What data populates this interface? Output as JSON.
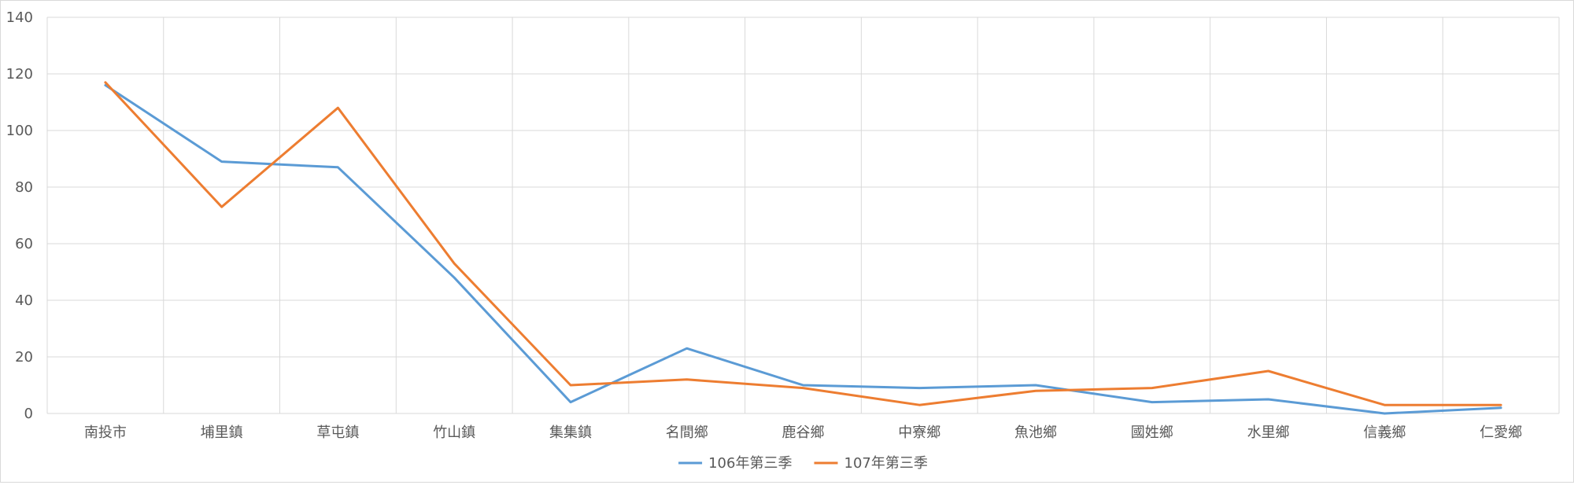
{
  "chart_data": {
    "type": "line",
    "title": "",
    "xlabel": "",
    "ylabel": "",
    "categories": [
      "南投市",
      "埔里鎮",
      "草屯鎮",
      "竹山鎮",
      "集集鎮",
      "名間鄉",
      "鹿谷鄉",
      "中寮鄉",
      "魚池鄉",
      "國姓鄉",
      "水里鄉",
      "信義鄉",
      "仁愛鄉"
    ],
    "ylim": [
      0,
      140
    ],
    "yticks": [
      0,
      20,
      40,
      60,
      80,
      100,
      120,
      140
    ],
    "grid": true,
    "legend_position": "bottom",
    "series": [
      {
        "name": "106年第三季",
        "color": "#5b9bd5",
        "values": [
          116,
          89,
          87,
          48,
          4,
          23,
          10,
          9,
          10,
          4,
          5,
          0,
          2
        ]
      },
      {
        "name": "107年第三季",
        "color": "#ed7d31",
        "values": [
          117,
          73,
          108,
          53,
          10,
          12,
          9,
          3,
          8,
          9,
          15,
          3,
          3
        ]
      }
    ],
    "colors": {
      "gridline": "#d9d9d9",
      "axis_text": "#595959"
    }
  }
}
